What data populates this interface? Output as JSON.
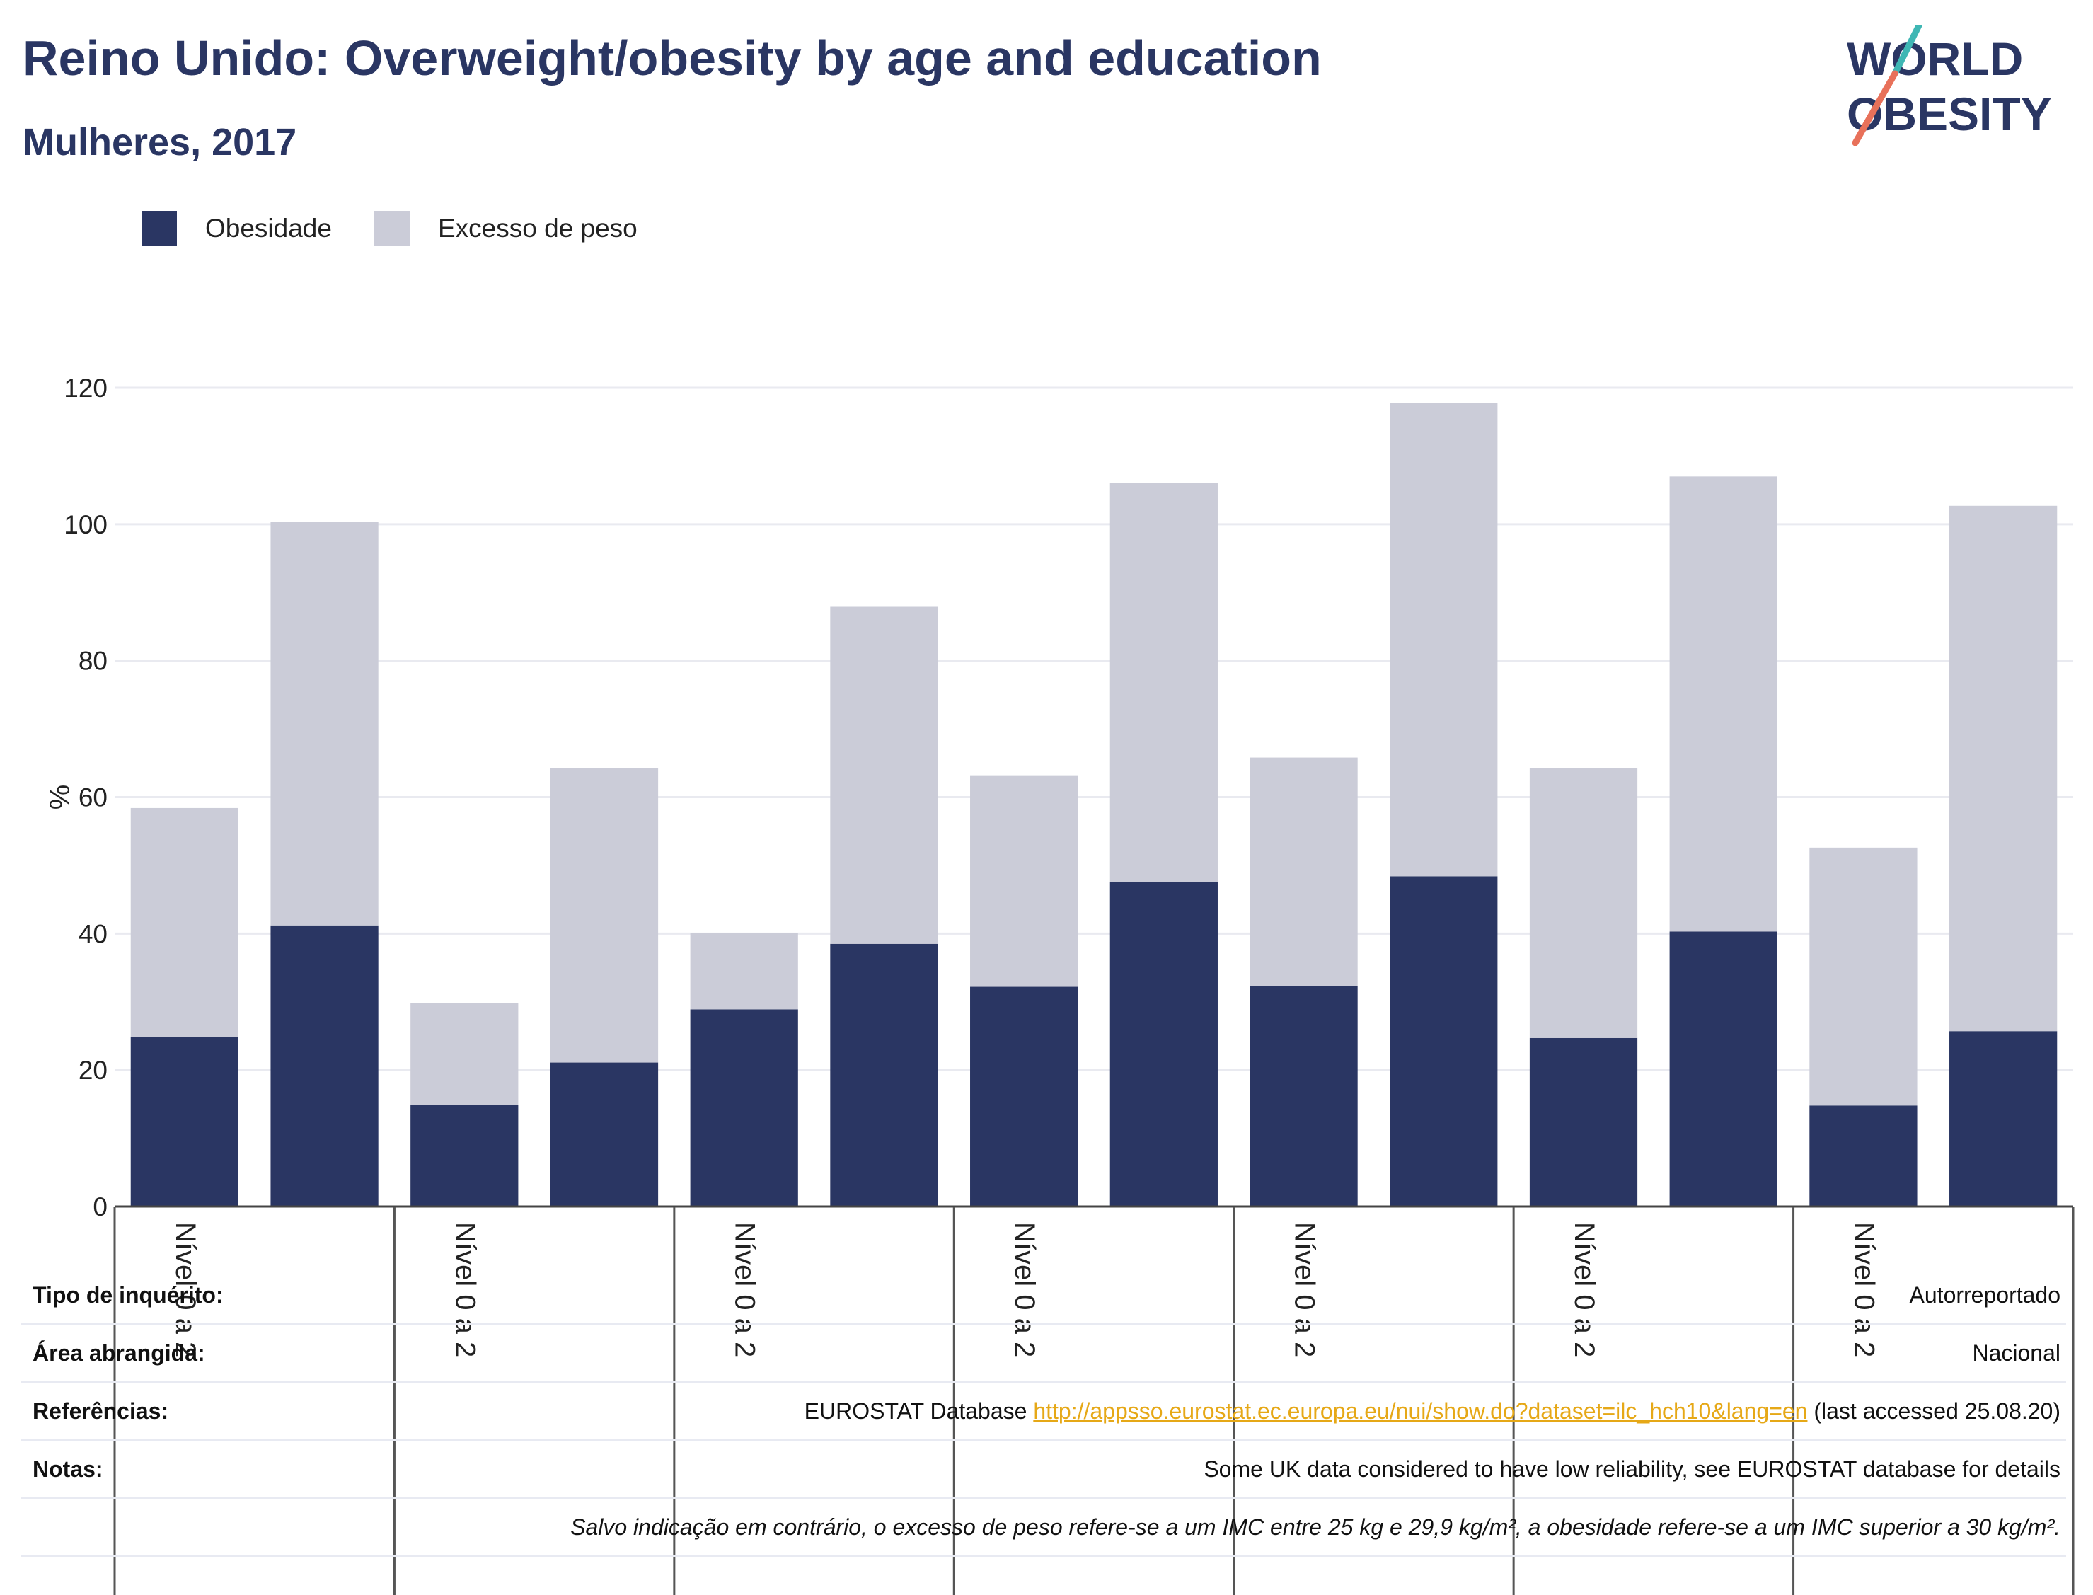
{
  "header": {
    "title": "Reino Unido: Overweight/obesity by age and education",
    "subtitle": "Mulheres, 2017"
  },
  "logo": {
    "line1": "WORLD",
    "line2": "OBESITY"
  },
  "legend": [
    {
      "label": "Obesidade",
      "color": "#2a3663"
    },
    {
      "label": "Excesso de peso",
      "color": "#cbccd8"
    }
  ],
  "chart_data": {
    "type": "bar",
    "stacked": true,
    "ylabel": "%",
    "ylim": [
      0,
      120
    ],
    "yticks": [
      0,
      20,
      40,
      60,
      80,
      100,
      120
    ],
    "group_labels": [
      "Nível 0 a 2",
      "Nível 0 a 2",
      "Nível 0 a 2",
      "Nível 0 a 2",
      "Nível 0 a 2",
      "Nível 0 a 2",
      "Nível 0 a 2"
    ],
    "series": [
      {
        "name": "Obesidade",
        "color": "#2a3663",
        "values": [
          24.8,
          41.2,
          14.9,
          21.1,
          28.9,
          38.5,
          32.2,
          47.6,
          32.3,
          48.4,
          24.7,
          40.3,
          14.8,
          25.7
        ]
      },
      {
        "name": "Excesso de peso",
        "color": "#cbccd8",
        "values": [
          33.6,
          59.1,
          14.9,
          43.2,
          11.2,
          49.4,
          31.0,
          58.5,
          33.5,
          69.4,
          39.5,
          66.7,
          37.8,
          77.0
        ]
      }
    ],
    "grid": true
  },
  "info": {
    "tipo": {
      "key": "Tipo de inquérito:",
      "value": "Autorreportado"
    },
    "area": {
      "key": "Área abrangida:",
      "value": "Nacional"
    },
    "refs": {
      "key": "Referências:",
      "prefix": "EUROSTAT Database ",
      "link": "http://appsso.eurostat.ec.europa.eu/nui/show.do?dataset=ilc_hch10&lang=en",
      "suffix": " (last accessed 25.08.20)"
    },
    "notas": {
      "key": "Notas:",
      "value": "Some UK data considered to have low reliability, see EUROSTAT database for details"
    },
    "footnote": "Salvo indicação em contrário, o excesso de peso refere-se a um IMC entre 25 kg e 29,9 kg/m², a obesidade refere-se a um IMC superior a 30 kg/m²."
  }
}
